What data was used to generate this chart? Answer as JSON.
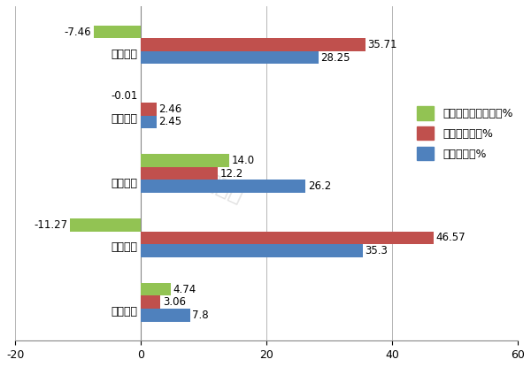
{
  "categories": [
    "电动皮卡",
    "电动轻卡",
    "电动微卡",
    "电动中卡",
    "电动重卡"
  ],
  "series": {
    "一季度占比同比增减%": [
      4.74,
      -11.27,
      14.0,
      -0.01,
      -7.46
    ],
    "去年同期占比%": [
      3.06,
      46.57,
      12.2,
      2.46,
      35.71
    ],
    "一季度占比%": [
      7.8,
      35.3,
      26.2,
      2.45,
      28.25
    ]
  },
  "colors": {
    "一季度占比同比增减%": "#92c353",
    "去年同期占比%": "#c0504d",
    "一季度占比%": "#4f81bd"
  },
  "xlim": [
    -20,
    60
  ],
  "xticks": [
    -20,
    0,
    20,
    40,
    60
  ],
  "bar_height": 0.2,
  "label_fontsize": 8.5,
  "cat_fontsize": 9,
  "legend_fontsize": 9,
  "background_color": "#ffffff",
  "watermark": "电动卡车观察",
  "series_order": [
    "一季度占比同比增减%",
    "去年同期占比%",
    "一季度占比%"
  ]
}
